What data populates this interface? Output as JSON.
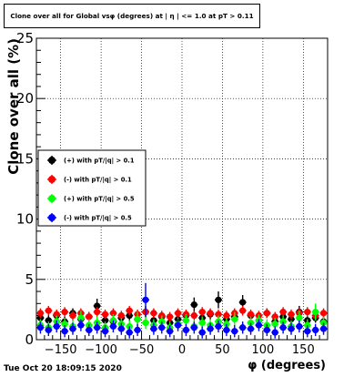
{
  "title": "Clone  over all for Global vsφ (degrees) at | η | <= 1.0 at pT > 0.11",
  "footer_date": "Tue Oct 20 18:09:15 2020",
  "colors": {
    "black": "#000000",
    "red": "#ff0000",
    "green": "#00ff00",
    "blue": "#0000ff",
    "grid": "#000000"
  },
  "chart_data": {
    "type": "scatter",
    "title": "Clone  over all for Global vsφ (degrees) at | η | <= 1.0 at pT > 0.11",
    "xlabel": "φ (degrees)",
    "ylabel": "Clone  over all (%)",
    "xlim": [
      -180,
      180
    ],
    "ylim": [
      0,
      25
    ],
    "xticks": [
      -150,
      -100,
      -50,
      0,
      50,
      100,
      150
    ],
    "yticks": [
      0,
      5,
      10,
      15,
      20,
      25
    ],
    "x_tick_labels": [
      "−150",
      "−100",
      "−50",
      "0",
      "50",
      "100",
      "150"
    ],
    "y_tick_labels": [
      "0",
      "5",
      "10",
      "15",
      "20",
      "25"
    ],
    "grid": true,
    "legend_position": "center-left",
    "series": [
      {
        "name": "(+) with pT/|q| > 0.1",
        "color": "#000000",
        "x": [
          -175,
          -165,
          -155,
          -145,
          -135,
          -125,
          -115,
          -105,
          -95,
          -85,
          -75,
          -65,
          -55,
          -45,
          -35,
          -25,
          -15,
          -5,
          5,
          15,
          25,
          35,
          45,
          55,
          65,
          75,
          85,
          95,
          105,
          115,
          125,
          135,
          145,
          155,
          165,
          175
        ],
        "y": [
          1.8,
          1.6,
          2.0,
          1.5,
          2.2,
          1.7,
          1.9,
          2.8,
          1.6,
          1.5,
          1.8,
          2.0,
          1.7,
          2.3,
          1.6,
          1.9,
          1.4,
          1.7,
          2.0,
          2.9,
          1.8,
          2.1,
          3.3,
          1.7,
          1.9,
          3.1,
          2.0,
          1.6,
          2.2,
          1.5,
          1.9,
          1.7,
          2.3,
          1.6,
          1.8,
          1.5
        ],
        "yerr": [
          0.4,
          0.4,
          0.4,
          0.4,
          0.4,
          0.4,
          0.4,
          0.6,
          0.4,
          0.4,
          0.4,
          0.4,
          0.4,
          0.5,
          0.4,
          0.4,
          0.4,
          0.4,
          0.4,
          0.6,
          0.4,
          0.4,
          0.7,
          0.4,
          0.4,
          0.6,
          0.4,
          0.4,
          0.4,
          0.4,
          0.4,
          0.4,
          0.5,
          0.4,
          0.4,
          0.4
        ]
      },
      {
        "name": "(-) with pT/|q| > 0.1",
        "color": "#ff0000",
        "x": [
          -175,
          -165,
          -155,
          -145,
          -135,
          -125,
          -115,
          -105,
          -95,
          -85,
          -75,
          -65,
          -55,
          -45,
          -35,
          -25,
          -15,
          -5,
          5,
          15,
          25,
          35,
          45,
          55,
          65,
          75,
          85,
          95,
          105,
          115,
          125,
          135,
          145,
          155,
          165,
          175
        ],
        "y": [
          2.2,
          2.4,
          2.1,
          2.3,
          2.0,
          2.2,
          1.9,
          2.3,
          2.1,
          2.2,
          2.0,
          2.4,
          2.1,
          2.3,
          2.2,
          2.0,
          1.9,
          2.2,
          2.1,
          2.0,
          2.3,
          2.2,
          2.1,
          2.0,
          2.2,
          2.4,
          2.1,
          2.0,
          2.2,
          1.9,
          2.3,
          2.1,
          2.2,
          2.3,
          2.0,
          2.2
        ],
        "yerr": [
          0.4,
          0.4,
          0.4,
          0.4,
          0.4,
          0.4,
          0.4,
          0.4,
          0.4,
          0.4,
          0.4,
          0.4,
          0.4,
          0.4,
          0.4,
          0.4,
          0.4,
          0.4,
          0.4,
          0.4,
          0.4,
          0.4,
          0.4,
          0.4,
          0.4,
          0.4,
          0.4,
          0.4,
          0.4,
          0.4,
          0.4,
          0.4,
          0.4,
          0.4,
          0.4,
          0.4
        ]
      },
      {
        "name": "(+) with pT/|q| > 0.5",
        "color": "#00ff00",
        "x": [
          -175,
          -165,
          -155,
          -145,
          -135,
          -125,
          -115,
          -105,
          -95,
          -85,
          -75,
          -65,
          -55,
          -45,
          -35,
          -25,
          -15,
          -5,
          5,
          15,
          25,
          35,
          45,
          55,
          65,
          75,
          85,
          95,
          105,
          115,
          125,
          135,
          145,
          155,
          165,
          175
        ],
        "y": [
          1.2,
          1.0,
          1.5,
          1.3,
          1.1,
          1.8,
          1.2,
          1.4,
          1.0,
          1.6,
          1.3,
          1.1,
          1.7,
          1.4,
          1.2,
          1.5,
          1.0,
          1.3,
          1.6,
          1.1,
          1.4,
          1.2,
          1.5,
          1.3,
          1.7,
          1.0,
          1.4,
          1.6,
          1.2,
          1.3,
          1.5,
          1.1,
          1.8,
          1.2,
          2.3,
          1.4
        ],
        "yerr": [
          0.5,
          0.5,
          0.5,
          0.5,
          0.5,
          0.6,
          0.5,
          0.5,
          0.5,
          0.5,
          0.5,
          0.5,
          0.6,
          0.5,
          0.5,
          0.5,
          0.5,
          0.5,
          0.5,
          0.5,
          0.5,
          0.5,
          0.5,
          0.5,
          0.6,
          0.5,
          0.5,
          0.5,
          0.5,
          0.5,
          0.5,
          0.5,
          0.6,
          0.5,
          0.7,
          0.5
        ]
      },
      {
        "name": "(-) with pT/|q| > 0.5",
        "color": "#0000ff",
        "x": [
          -175,
          -165,
          -155,
          -145,
          -135,
          -125,
          -115,
          -105,
          -95,
          -85,
          -75,
          -65,
          -55,
          -45,
          -35,
          -25,
          -15,
          -5,
          5,
          15,
          25,
          35,
          45,
          55,
          65,
          75,
          85,
          95,
          105,
          115,
          125,
          135,
          145,
          155,
          165,
          175
        ],
        "y": [
          1.0,
          0.8,
          1.1,
          0.7,
          0.9,
          1.2,
          0.8,
          1.0,
          0.7,
          1.1,
          0.9,
          0.6,
          0.8,
          3.3,
          0.9,
          1.0,
          0.7,
          1.2,
          0.8,
          1.0,
          0.6,
          0.9,
          1.1,
          0.8,
          0.7,
          1.0,
          0.9,
          1.2,
          0.8,
          0.6,
          1.0,
          0.9,
          1.1,
          0.7,
          0.8,
          0.9
        ],
        "yerr": [
          0.5,
          0.5,
          0.5,
          0.5,
          0.5,
          0.5,
          0.5,
          0.5,
          0.5,
          0.5,
          0.5,
          0.5,
          0.5,
          1.4,
          0.5,
          0.5,
          0.5,
          0.5,
          0.5,
          0.5,
          0.5,
          0.5,
          0.5,
          0.5,
          0.5,
          0.5,
          0.5,
          0.5,
          0.5,
          0.5,
          0.5,
          0.5,
          0.5,
          0.5,
          0.5,
          0.5
        ]
      }
    ]
  }
}
